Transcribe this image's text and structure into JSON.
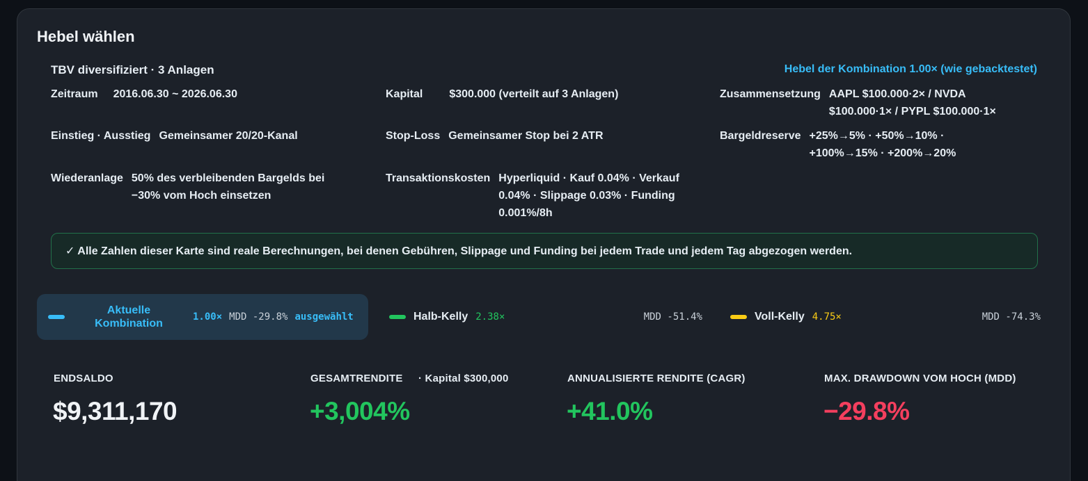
{
  "card": {
    "title": "Hebel wählen",
    "strategy_name": "TBV diversifiziert · 3 Anlagen",
    "combo_leverage_note": "Hebel der Kombination 1.00× (wie gebacktestet)"
  },
  "params": {
    "zeitraum": {
      "label": "Zeitraum",
      "value": "2016.06.30 ~ 2026.06.30"
    },
    "kapital": {
      "label": "Kapital",
      "value": "$300.000 (verteilt auf 3 Anlagen)"
    },
    "zusammensetzung": {
      "label": "Zusammensetzung",
      "value": "AAPL $100.000·2× / NVDA $100.000·1× / PYPL $100.000·1×"
    },
    "einstieg": {
      "label": "Einstieg · Ausstieg",
      "value": "Gemeinsamer 20/20-Kanal"
    },
    "stoploss": {
      "label": "Stop-Loss",
      "value": "Gemeinsamer Stop bei 2 ATR"
    },
    "bargeldreserve": {
      "label": "Bargeldreserve",
      "value": "+25%→5% · +50%→10% · +100%→15% · +200%→20%"
    },
    "wiederanlage": {
      "label": "Wiederanlage",
      "value": "50% des verbleibenden Bargelds bei −30% vom Hoch einsetzen"
    },
    "kosten": {
      "label": "Transaktionskosten",
      "value": "Hyperliquid · Kauf 0.04% · Verkauf 0.04% · Slippage 0.03% · Funding 0.001%/8h"
    }
  },
  "notice": "✓ Alle Zahlen dieser Karte sind reale Berechnungen, bei denen Gebühren, Slippage und Funding bei jedem Trade und jedem Tag abgezogen werden.",
  "leverage_options": [
    {
      "name": "Aktuelle Kombination",
      "leverage": "1.00×",
      "mdd": "MDD -29.8%",
      "badge": "ausgewählt",
      "color": "#38bdf8",
      "selected": true
    },
    {
      "name": "Halb-Kelly",
      "leverage": "2.38×",
      "mdd": "MDD -51.4%",
      "color": "#22c55e",
      "selected": false
    },
    {
      "name": "Voll-Kelly",
      "leverage": "4.75×",
      "mdd": "MDD -74.3%",
      "color": "#facc15",
      "selected": false
    }
  ],
  "stats": {
    "endsaldo": {
      "label": "ENDSALDO",
      "value": "$9,311,170"
    },
    "gesamtrendite": {
      "label": "GESAMTRENDITE",
      "sub": "· Kapital $300,000",
      "value": "+3,004%"
    },
    "cagr": {
      "label": "ANNUALISIERTE RENDITE (CAGR)",
      "value": "+41.0%"
    },
    "mdd": {
      "label": "MAX. DRAWDOWN VOM HOCH (MDD)",
      "value": "−29.8%"
    }
  },
  "colors": {
    "positive": "#22c55e",
    "negative": "#f43f5e",
    "accent": "#38bdf8"
  }
}
